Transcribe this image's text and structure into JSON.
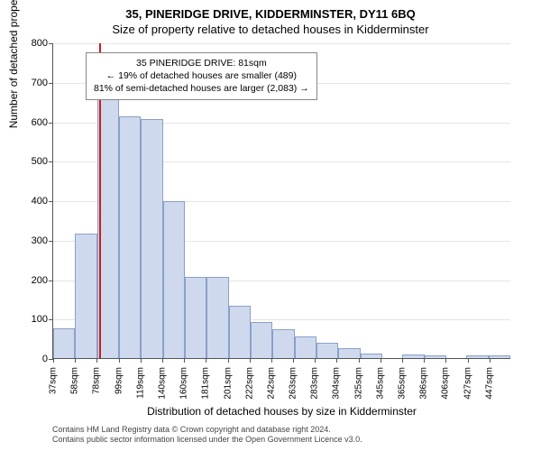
{
  "titles": {
    "line1": "35, PINERIDGE DRIVE, KIDDERMINSTER, DY11 6BQ",
    "line2": "Size of property relative to detached houses in Kidderminster"
  },
  "chart": {
    "type": "histogram",
    "y_label": "Number of detached properties",
    "x_label": "Distribution of detached houses by size in Kidderminster",
    "ylim": [
      0,
      800
    ],
    "ytick_step": 100,
    "yticks": [
      0,
      100,
      200,
      300,
      400,
      500,
      600,
      700,
      800
    ],
    "categories": [
      "37sqm",
      "58sqm",
      "78sqm",
      "99sqm",
      "119sqm",
      "140sqm",
      "160sqm",
      "181sqm",
      "201sqm",
      "222sqm",
      "242sqm",
      "263sqm",
      "283sqm",
      "304sqm",
      "325sqm",
      "345sqm",
      "365sqm",
      "386sqm",
      "406sqm",
      "427sqm",
      "447sqm"
    ],
    "values": [
      75,
      315,
      710,
      612,
      605,
      398,
      205,
      205,
      133,
      92,
      73,
      55,
      38,
      25,
      12,
      0,
      10,
      7,
      0,
      6,
      7
    ],
    "bar_fill_color": "#cfd9ee",
    "bar_border_color": "#8aa0c8",
    "background_color": "#ffffff",
    "grid_color": "#e5e5e5",
    "axis_color": "#555555",
    "label_fontsize": 12,
    "tick_fontsize": 11,
    "reference_line": {
      "position_sqm": 81,
      "color": "#d11a1a"
    }
  },
  "annotation": {
    "line1": "35 PINERIDGE DRIVE: 81sqm",
    "line2": "← 19% of detached houses are smaller (489)",
    "line3": "81% of semi-detached houses are larger (2,083) →",
    "border_color": "#888888",
    "background_color": "#ffffff",
    "fontsize": 10.5
  },
  "footer": {
    "line1": "Contains HM Land Registry data © Crown copyright and database right 2024.",
    "line2": "Contains public sector information licensed under the Open Government Licence v3.0.",
    "fontsize": 9,
    "color": "#444444"
  }
}
